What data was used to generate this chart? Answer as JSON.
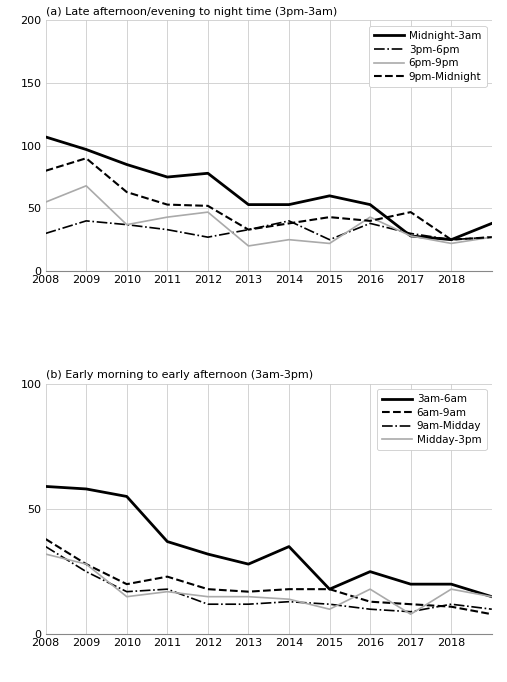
{
  "years": [
    2008,
    2009,
    2010,
    2011,
    2012,
    2013,
    2014,
    2015,
    2016,
    2017,
    2018,
    2019
  ],
  "xtick_labels": [
    "2008",
    "2009",
    "2010",
    "2011",
    "2012",
    "2013",
    "2014",
    "2015",
    "2016",
    "2017",
    "2018",
    ""
  ],
  "panel_a": {
    "title": "(a) Late afternoon/evening to night time (3pm-3am)",
    "ylim": [
      0,
      200
    ],
    "yticks": [
      0,
      50,
      100,
      150,
      200
    ],
    "series": {
      "Midnight-3am": [
        107,
        97,
        85,
        75,
        78,
        53,
        53,
        60,
        53,
        28,
        25,
        38
      ],
      "3pm-6pm": [
        30,
        40,
        37,
        33,
        27,
        33,
        40,
        25,
        38,
        30,
        25,
        27
      ],
      "6pm-9pm": [
        55,
        68,
        37,
        43,
        47,
        20,
        25,
        22,
        43,
        28,
        22,
        27
      ],
      "9pm-Midnight": [
        80,
        90,
        63,
        53,
        52,
        33,
        38,
        43,
        40,
        47,
        25,
        27
      ]
    },
    "styles": {
      "Midnight-3am": {
        "color": "#000000",
        "linestyle": "-",
        "linewidth": 2.0
      },
      "3pm-6pm": {
        "color": "#000000",
        "linestyle": "-.",
        "linewidth": 1.2
      },
      "6pm-9pm": {
        "color": "#aaaaaa",
        "linestyle": "-",
        "linewidth": 1.2
      },
      "9pm-Midnight": {
        "color": "#000000",
        "linestyle": "--",
        "linewidth": 1.5
      }
    },
    "legend_order": [
      "Midnight-3am",
      "3pm-6pm",
      "6pm-9pm",
      "9pm-Midnight"
    ]
  },
  "panel_b": {
    "title": "(b) Early morning to early afternoon (3am-3pm)",
    "ylim": [
      0,
      100
    ],
    "yticks": [
      0,
      50,
      100
    ],
    "series": {
      "3am-6am": [
        59,
        58,
        55,
        37,
        32,
        28,
        35,
        18,
        25,
        20,
        20,
        15
      ],
      "6am-9am": [
        38,
        28,
        20,
        23,
        18,
        17,
        18,
        18,
        13,
        12,
        11,
        8
      ],
      "9am-Midday": [
        35,
        25,
        17,
        18,
        12,
        12,
        13,
        12,
        10,
        9,
        12,
        10
      ],
      "Midday-3pm": [
        32,
        28,
        15,
        17,
        15,
        15,
        14,
        10,
        18,
        8,
        18,
        15
      ]
    },
    "styles": {
      "3am-6am": {
        "color": "#000000",
        "linestyle": "-",
        "linewidth": 2.0
      },
      "6am-9am": {
        "color": "#000000",
        "linestyle": "--",
        "linewidth": 1.5
      },
      "9am-Midday": {
        "color": "#000000",
        "linestyle": "-.",
        "linewidth": 1.2
      },
      "Midday-3pm": {
        "color": "#aaaaaa",
        "linestyle": "-",
        "linewidth": 1.2
      }
    },
    "legend_order": [
      "3am-6am",
      "6am-9am",
      "9am-Midday",
      "Midday-3pm"
    ]
  },
  "background_color": "#ffffff",
  "grid_color": "#cccccc",
  "font_size": 8.0,
  "legend_font_size": 7.5,
  "title_font_size": 8.0
}
